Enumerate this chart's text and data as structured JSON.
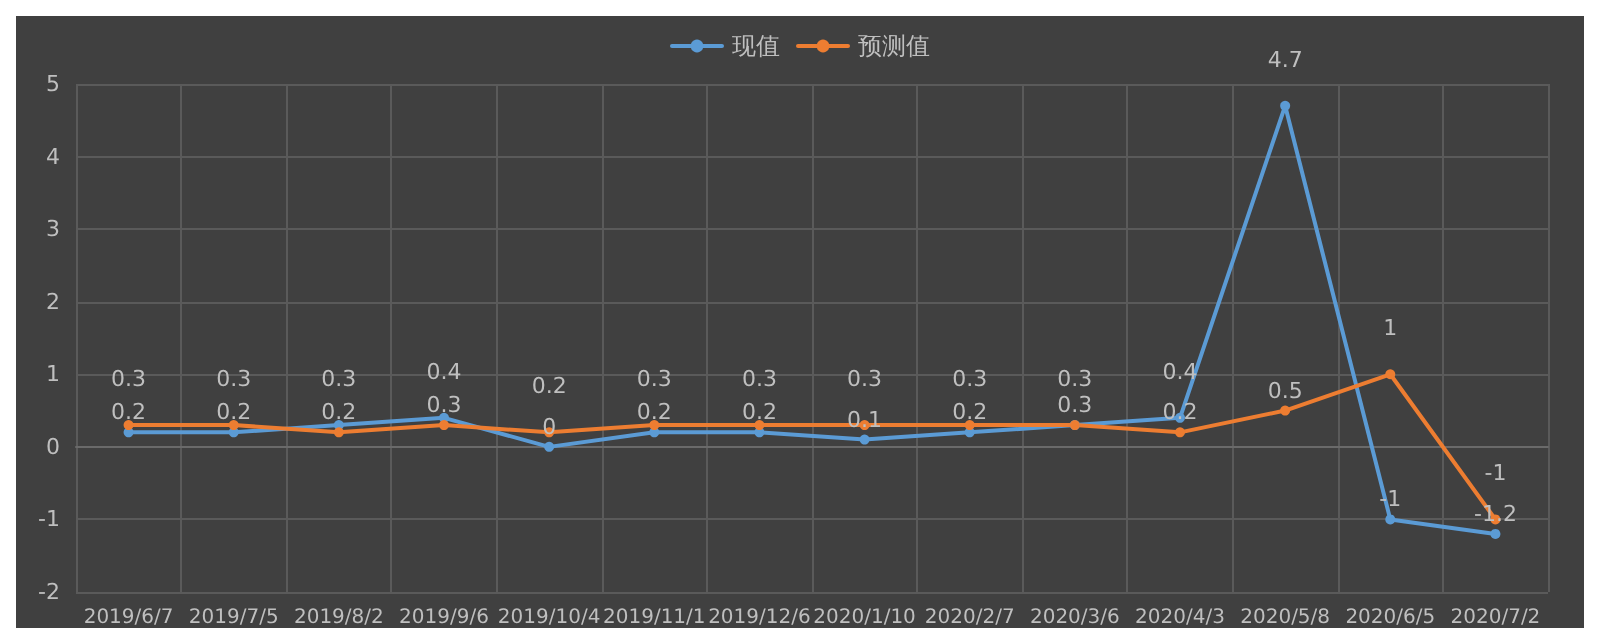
{
  "chart_data": {
    "type": "line",
    "categories": [
      "2019/6/7",
      "2019/7/5",
      "2019/8/2",
      "2019/9/6",
      "2019/10/4",
      "2019/11/1",
      "2019/12/6",
      "2020/1/10",
      "2020/2/7",
      "2020/3/6",
      "2020/4/3",
      "2020/5/8",
      "2020/6/5",
      "2020/7/2"
    ],
    "series": [
      {
        "name": "现值",
        "color": "#5b9bd5",
        "values": [
          0.2,
          0.2,
          0.3,
          0.4,
          0,
          0.2,
          0.2,
          0.1,
          0.2,
          0.3,
          0.4,
          4.7,
          -1,
          -1.2
        ]
      },
      {
        "name": "预测值",
        "color": "#ed7d31",
        "values": [
          0.3,
          0.3,
          0.2,
          0.3,
          0.2,
          0.3,
          0.3,
          0.3,
          0.3,
          0.3,
          0.2,
          0.5,
          1,
          -1
        ]
      }
    ],
    "ylim": [
      -2,
      5
    ],
    "yticks": [
      -2,
      -1,
      0,
      1,
      2,
      3,
      4,
      5
    ],
    "grid": true,
    "legend": "top",
    "data_labels": true,
    "marker": "circle",
    "line_style": "solid"
  }
}
